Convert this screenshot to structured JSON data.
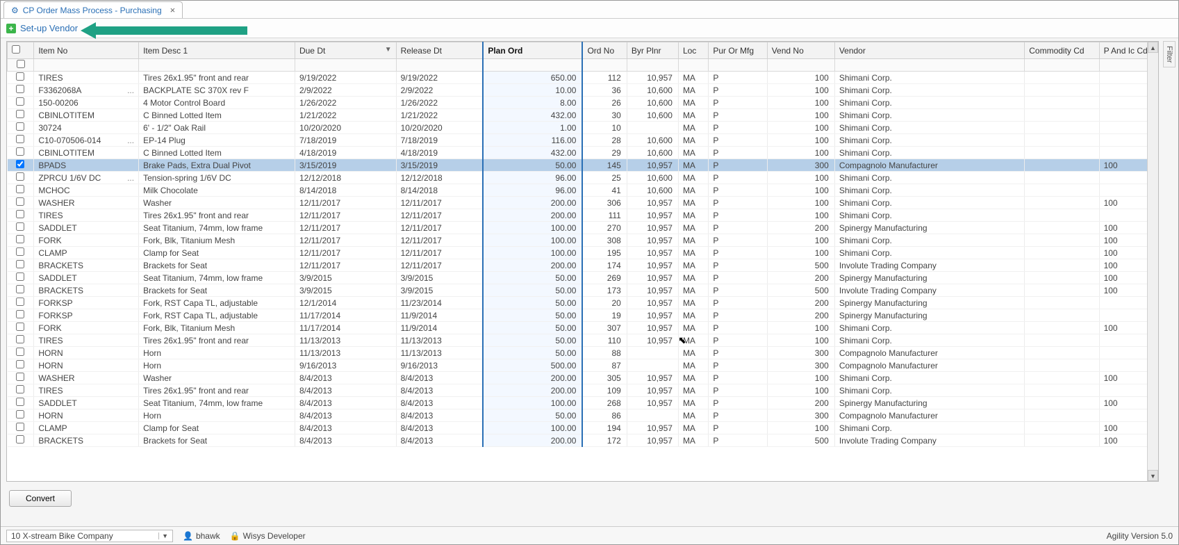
{
  "tab": {
    "title": "CP Order Mass Process - Purchasing"
  },
  "toolbar": {
    "setup_vendor": "Set-up Vendor"
  },
  "buttons": {
    "convert": "Convert"
  },
  "filter_tab": "Filter",
  "status": {
    "company": "10 X-stream Bike Company",
    "user": "bhawk",
    "role": "Wisys Developer",
    "version": "Agility Version 5.0"
  },
  "columns": [
    {
      "key": "item_no",
      "label": "Item No"
    },
    {
      "key": "item_desc",
      "label": "Item Desc 1"
    },
    {
      "key": "due_dt",
      "label": "Due Dt",
      "sort": "desc"
    },
    {
      "key": "release_dt",
      "label": "Release Dt"
    },
    {
      "key": "plan_ord",
      "label": "Plan Ord",
      "highlight": true
    },
    {
      "key": "ord_no",
      "label": "Ord No"
    },
    {
      "key": "byr_plnr",
      "label": "Byr Plnr"
    },
    {
      "key": "loc",
      "label": "Loc"
    },
    {
      "key": "pur_or_mfg",
      "label": "Pur Or Mfg"
    },
    {
      "key": "vend_no",
      "label": "Vend No"
    },
    {
      "key": "vendor",
      "label": "Vendor"
    },
    {
      "key": "commodity_cd",
      "label": "Commodity Cd"
    },
    {
      "key": "p_and_ic_cd",
      "label": "P And Ic Cd"
    }
  ],
  "rows": [
    {
      "checked": false,
      "item_no": "TIRES",
      "item_desc": "Tires 26x1.95\" front and rear",
      "due_dt": "9/19/2022",
      "release_dt": "9/19/2022",
      "plan_ord": "650.00",
      "ord_no": "112",
      "byr_plnr": "10,957",
      "loc": "MA",
      "pur_or_mfg": "P",
      "vend_no": "100",
      "vendor": "Shimani Corp.",
      "commodity_cd": "",
      "p_and_ic_cd": ""
    },
    {
      "checked": false,
      "item_no": "F3362068A",
      "ell": true,
      "item_desc": "BACKPLATE SC 370X rev F",
      "due_dt": "2/9/2022",
      "release_dt": "2/9/2022",
      "plan_ord": "10.00",
      "ord_no": "36",
      "byr_plnr": "10,600",
      "loc": "MA",
      "pur_or_mfg": "P",
      "vend_no": "100",
      "vendor": "Shimani Corp.",
      "commodity_cd": "",
      "p_and_ic_cd": ""
    },
    {
      "checked": false,
      "item_no": "150-00206",
      "item_desc": "4 Motor Control Board",
      "due_dt": "1/26/2022",
      "release_dt": "1/26/2022",
      "plan_ord": "8.00",
      "ord_no": "26",
      "byr_plnr": "10,600",
      "loc": "MA",
      "pur_or_mfg": "P",
      "vend_no": "100",
      "vendor": "Shimani Corp.",
      "commodity_cd": "",
      "p_and_ic_cd": ""
    },
    {
      "checked": false,
      "item_no": "CBINLOTITEM",
      "item_desc": "C Binned Lotted Item",
      "due_dt": "1/21/2022",
      "release_dt": "1/21/2022",
      "plan_ord": "432.00",
      "ord_no": "30",
      "byr_plnr": "10,600",
      "loc": "MA",
      "pur_or_mfg": "P",
      "vend_no": "100",
      "vendor": "Shimani Corp.",
      "commodity_cd": "",
      "p_and_ic_cd": ""
    },
    {
      "checked": false,
      "item_no": "30724",
      "item_desc": "6' - 1/2\" Oak Rail",
      "due_dt": "10/20/2020",
      "release_dt": "10/20/2020",
      "plan_ord": "1.00",
      "ord_no": "10",
      "byr_plnr": "",
      "loc": "MA",
      "pur_or_mfg": "P",
      "vend_no": "100",
      "vendor": "Shimani Corp.",
      "commodity_cd": "",
      "p_and_ic_cd": ""
    },
    {
      "checked": false,
      "item_no": "C10-070506-014",
      "ell": true,
      "item_desc": "EP-14 Plug",
      "due_dt": "7/18/2019",
      "release_dt": "7/18/2019",
      "plan_ord": "116.00",
      "ord_no": "28",
      "byr_plnr": "10,600",
      "loc": "MA",
      "pur_or_mfg": "P",
      "vend_no": "100",
      "vendor": "Shimani Corp.",
      "commodity_cd": "",
      "p_and_ic_cd": ""
    },
    {
      "checked": false,
      "item_no": "CBINLOTITEM",
      "item_desc": "C Binned Lotted Item",
      "due_dt": "4/18/2019",
      "release_dt": "4/18/2019",
      "plan_ord": "432.00",
      "ord_no": "29",
      "byr_plnr": "10,600",
      "loc": "MA",
      "pur_or_mfg": "P",
      "vend_no": "100",
      "vendor": "Shimani Corp.",
      "commodity_cd": "",
      "p_and_ic_cd": ""
    },
    {
      "checked": true,
      "selected": true,
      "item_no": "BPADS",
      "item_desc": "Brake Pads, Extra Dual Pivot",
      "due_dt": "3/15/2019",
      "release_dt": "3/15/2019",
      "plan_ord": "50.00",
      "ord_no": "145",
      "byr_plnr": "10,957",
      "loc": "MA",
      "pur_or_mfg": "P",
      "vend_no": "300",
      "vendor": "Compagnolo Manufacturer",
      "commodity_cd": "",
      "p_and_ic_cd": "100"
    },
    {
      "checked": false,
      "item_no": "ZPRCU 1/6V DC",
      "ell": true,
      "item_desc": "Tension-spring 1/6V DC",
      "due_dt": "12/12/2018",
      "release_dt": "12/12/2018",
      "plan_ord": "96.00",
      "ord_no": "25",
      "byr_plnr": "10,600",
      "loc": "MA",
      "pur_or_mfg": "P",
      "vend_no": "100",
      "vendor": "Shimani Corp.",
      "commodity_cd": "",
      "p_and_ic_cd": ""
    },
    {
      "checked": false,
      "item_no": "MCHOC",
      "item_desc": "Milk Chocolate",
      "due_dt": "8/14/2018",
      "release_dt": "8/14/2018",
      "plan_ord": "96.00",
      "ord_no": "41",
      "byr_plnr": "10,600",
      "loc": "MA",
      "pur_or_mfg": "P",
      "vend_no": "100",
      "vendor": "Shimani Corp.",
      "commodity_cd": "",
      "p_and_ic_cd": ""
    },
    {
      "checked": false,
      "item_no": "WASHER",
      "item_desc": "Washer",
      "due_dt": "12/11/2017",
      "release_dt": "12/11/2017",
      "plan_ord": "200.00",
      "ord_no": "306",
      "byr_plnr": "10,957",
      "loc": "MA",
      "pur_or_mfg": "P",
      "vend_no": "100",
      "vendor": "Shimani Corp.",
      "commodity_cd": "",
      "p_and_ic_cd": "100"
    },
    {
      "checked": false,
      "item_no": "TIRES",
      "item_desc": "Tires 26x1.95\" front and rear",
      "due_dt": "12/11/2017",
      "release_dt": "12/11/2017",
      "plan_ord": "200.00",
      "ord_no": "111",
      "byr_plnr": "10,957",
      "loc": "MA",
      "pur_or_mfg": "P",
      "vend_no": "100",
      "vendor": "Shimani Corp.",
      "commodity_cd": "",
      "p_and_ic_cd": ""
    },
    {
      "checked": false,
      "item_no": "SADDLET",
      "item_desc": "Seat Titanium, 74mm, low frame",
      "due_dt": "12/11/2017",
      "release_dt": "12/11/2017",
      "plan_ord": "100.00",
      "ord_no": "270",
      "byr_plnr": "10,957",
      "loc": "MA",
      "pur_or_mfg": "P",
      "vend_no": "200",
      "vendor": "Spinergy Manufacturing",
      "commodity_cd": "",
      "p_and_ic_cd": "100"
    },
    {
      "checked": false,
      "item_no": "FORK",
      "item_desc": "Fork, Blk, Titanium Mesh",
      "due_dt": "12/11/2017",
      "release_dt": "12/11/2017",
      "plan_ord": "100.00",
      "ord_no": "308",
      "byr_plnr": "10,957",
      "loc": "MA",
      "pur_or_mfg": "P",
      "vend_no": "100",
      "vendor": "Shimani Corp.",
      "commodity_cd": "",
      "p_and_ic_cd": "100"
    },
    {
      "checked": false,
      "item_no": "CLAMP",
      "item_desc": "Clamp for Seat",
      "due_dt": "12/11/2017",
      "release_dt": "12/11/2017",
      "plan_ord": "100.00",
      "ord_no": "195",
      "byr_plnr": "10,957",
      "loc": "MA",
      "pur_or_mfg": "P",
      "vend_no": "100",
      "vendor": "Shimani Corp.",
      "commodity_cd": "",
      "p_and_ic_cd": "100"
    },
    {
      "checked": false,
      "item_no": "BRACKETS",
      "item_desc": "Brackets for Seat",
      "due_dt": "12/11/2017",
      "release_dt": "12/11/2017",
      "plan_ord": "200.00",
      "ord_no": "174",
      "byr_plnr": "10,957",
      "loc": "MA",
      "pur_or_mfg": "P",
      "vend_no": "500",
      "vendor": "Involute Trading Company",
      "commodity_cd": "",
      "p_and_ic_cd": "100"
    },
    {
      "checked": false,
      "item_no": "SADDLET",
      "item_desc": "Seat Titanium, 74mm, low frame",
      "due_dt": "3/9/2015",
      "release_dt": "3/9/2015",
      "plan_ord": "50.00",
      "ord_no": "269",
      "byr_plnr": "10,957",
      "loc": "MA",
      "pur_or_mfg": "P",
      "vend_no": "200",
      "vendor": "Spinergy Manufacturing",
      "commodity_cd": "",
      "p_and_ic_cd": "100"
    },
    {
      "checked": false,
      "item_no": "BRACKETS",
      "item_desc": "Brackets for Seat",
      "due_dt": "3/9/2015",
      "release_dt": "3/9/2015",
      "plan_ord": "50.00",
      "ord_no": "173",
      "byr_plnr": "10,957",
      "loc": "MA",
      "pur_or_mfg": "P",
      "vend_no": "500",
      "vendor": "Involute Trading Company",
      "commodity_cd": "",
      "p_and_ic_cd": "100"
    },
    {
      "checked": false,
      "item_no": "FORKSP",
      "item_desc": "Fork, RST Capa TL, adjustable",
      "due_dt": "12/1/2014",
      "release_dt": "11/23/2014",
      "plan_ord": "50.00",
      "ord_no": "20",
      "byr_plnr": "10,957",
      "loc": "MA",
      "pur_or_mfg": "P",
      "vend_no": "200",
      "vendor": "Spinergy Manufacturing",
      "commodity_cd": "",
      "p_and_ic_cd": ""
    },
    {
      "checked": false,
      "item_no": "FORKSP",
      "item_desc": "Fork, RST Capa TL, adjustable",
      "due_dt": "11/17/2014",
      "release_dt": "11/9/2014",
      "plan_ord": "50.00",
      "ord_no": "19",
      "byr_plnr": "10,957",
      "loc": "MA",
      "pur_or_mfg": "P",
      "vend_no": "200",
      "vendor": "Spinergy Manufacturing",
      "commodity_cd": "",
      "p_and_ic_cd": ""
    },
    {
      "checked": false,
      "item_no": "FORK",
      "item_desc": "Fork, Blk, Titanium Mesh",
      "due_dt": "11/17/2014",
      "release_dt": "11/9/2014",
      "plan_ord": "50.00",
      "ord_no": "307",
      "byr_plnr": "10,957",
      "loc": "MA",
      "pur_or_mfg": "P",
      "vend_no": "100",
      "vendor": "Shimani Corp.",
      "commodity_cd": "",
      "p_and_ic_cd": "100"
    },
    {
      "checked": false,
      "item_no": "TIRES",
      "item_desc": "Tires 26x1.95\" front and rear",
      "due_dt": "11/13/2013",
      "release_dt": "11/13/2013",
      "plan_ord": "50.00",
      "ord_no": "110",
      "byr_plnr": "10,957",
      "loc": "MA",
      "pur_or_mfg": "P",
      "vend_no": "100",
      "vendor": "Shimani Corp.",
      "commodity_cd": "",
      "p_and_ic_cd": ""
    },
    {
      "checked": false,
      "item_no": "HORN",
      "item_desc": "Horn",
      "due_dt": "11/13/2013",
      "release_dt": "11/13/2013",
      "plan_ord": "50.00",
      "ord_no": "88",
      "byr_plnr": "",
      "loc": "MA",
      "pur_or_mfg": "P",
      "vend_no": "300",
      "vendor": "Compagnolo Manufacturer",
      "commodity_cd": "",
      "p_and_ic_cd": ""
    },
    {
      "checked": false,
      "item_no": "HORN",
      "item_desc": "Horn",
      "due_dt": "9/16/2013",
      "release_dt": "9/16/2013",
      "plan_ord": "500.00",
      "ord_no": "87",
      "byr_plnr": "",
      "loc": "MA",
      "pur_or_mfg": "P",
      "vend_no": "300",
      "vendor": "Compagnolo Manufacturer",
      "commodity_cd": "",
      "p_and_ic_cd": ""
    },
    {
      "checked": false,
      "item_no": "WASHER",
      "item_desc": "Washer",
      "due_dt": "8/4/2013",
      "release_dt": "8/4/2013",
      "plan_ord": "200.00",
      "ord_no": "305",
      "byr_plnr": "10,957",
      "loc": "MA",
      "pur_or_mfg": "P",
      "vend_no": "100",
      "vendor": "Shimani Corp.",
      "commodity_cd": "",
      "p_and_ic_cd": "100"
    },
    {
      "checked": false,
      "item_no": "TIRES",
      "item_desc": "Tires 26x1.95\" front and rear",
      "due_dt": "8/4/2013",
      "release_dt": "8/4/2013",
      "plan_ord": "200.00",
      "ord_no": "109",
      "byr_plnr": "10,957",
      "loc": "MA",
      "pur_or_mfg": "P",
      "vend_no": "100",
      "vendor": "Shimani Corp.",
      "commodity_cd": "",
      "p_and_ic_cd": ""
    },
    {
      "checked": false,
      "item_no": "SADDLET",
      "item_desc": "Seat Titanium, 74mm, low frame",
      "due_dt": "8/4/2013",
      "release_dt": "8/4/2013",
      "plan_ord": "100.00",
      "ord_no": "268",
      "byr_plnr": "10,957",
      "loc": "MA",
      "pur_or_mfg": "P",
      "vend_no": "200",
      "vendor": "Spinergy Manufacturing",
      "commodity_cd": "",
      "p_and_ic_cd": "100"
    },
    {
      "checked": false,
      "item_no": "HORN",
      "item_desc": "Horn",
      "due_dt": "8/4/2013",
      "release_dt": "8/4/2013",
      "plan_ord": "50.00",
      "ord_no": "86",
      "byr_plnr": "",
      "loc": "MA",
      "pur_or_mfg": "P",
      "vend_no": "300",
      "vendor": "Compagnolo Manufacturer",
      "commodity_cd": "",
      "p_and_ic_cd": ""
    },
    {
      "checked": false,
      "item_no": "CLAMP",
      "item_desc": "Clamp for Seat",
      "due_dt": "8/4/2013",
      "release_dt": "8/4/2013",
      "plan_ord": "100.00",
      "ord_no": "194",
      "byr_plnr": "10,957",
      "loc": "MA",
      "pur_or_mfg": "P",
      "vend_no": "100",
      "vendor": "Shimani Corp.",
      "commodity_cd": "",
      "p_and_ic_cd": "100"
    },
    {
      "checked": false,
      "item_no": "BRACKETS",
      "item_desc": "Brackets for Seat",
      "due_dt": "8/4/2013",
      "release_dt": "8/4/2013",
      "plan_ord": "200.00",
      "ord_no": "172",
      "byr_plnr": "10,957",
      "loc": "MA",
      "pur_or_mfg": "P",
      "vend_no": "500",
      "vendor": "Involute Trading Company",
      "commodity_cd": "",
      "p_and_ic_cd": "100"
    }
  ],
  "colors": {
    "accent": "#2a6fb5",
    "arrow": "#1fa184",
    "selected_row": "#b6cfe8"
  }
}
